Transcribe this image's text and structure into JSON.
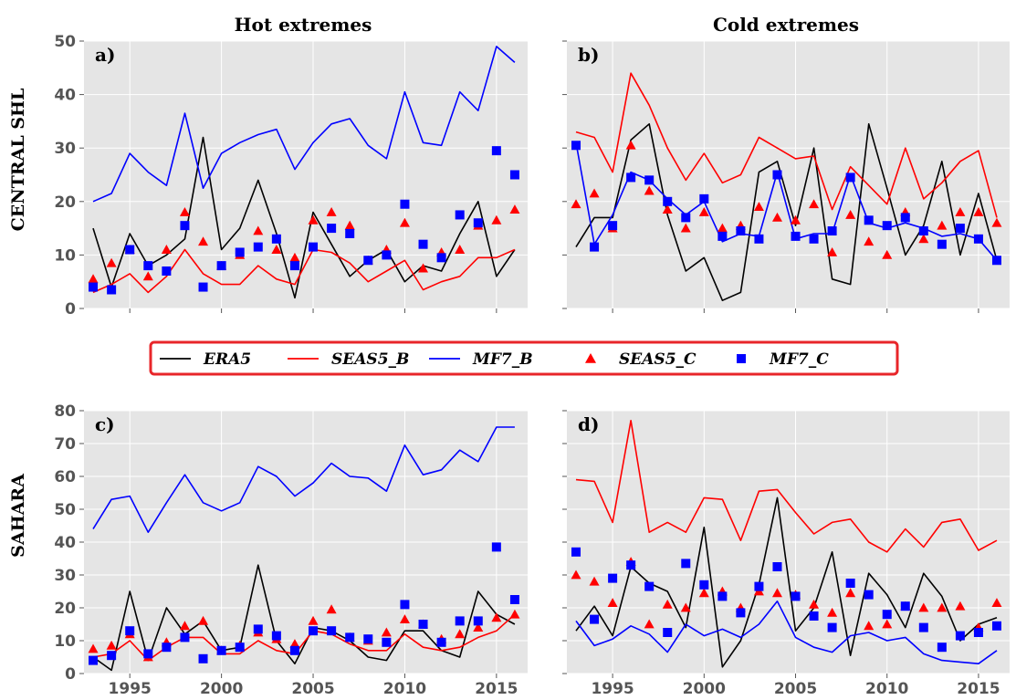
{
  "column_titles": [
    "Hot extremes",
    "Cold extremes"
  ],
  "row_labels": [
    "CENTRAL SHL",
    "SAHARA"
  ],
  "legend": {
    "entries": [
      {
        "label": "ERA5",
        "kind": "line",
        "color": "#000000"
      },
      {
        "label": "SEAS5_B",
        "kind": "line",
        "color": "#ff0000"
      },
      {
        "label": "MF7_B",
        "kind": "line",
        "color": "#0000ff"
      },
      {
        "label": "SEAS5_C",
        "kind": "triangle",
        "color": "#ff0000"
      },
      {
        "label": "MF7_C",
        "kind": "square",
        "color": "#0000ff"
      }
    ],
    "border_color": "#e8262a",
    "placement": "center"
  },
  "colors": {
    "panel_bg": "#e5e5e5",
    "grid": "#ffffff",
    "era5": "#000000",
    "seas5": "#ff0000",
    "mf7": "#0000ff"
  },
  "chart_data": [
    {
      "type": "line",
      "panel_label": "a)",
      "title": "Hot extremes",
      "ylabel": "CENTRAL SHL",
      "xlim": [
        1992.5,
        2016.7
      ],
      "ylim": [
        0,
        50
      ],
      "xticks": [
        1995,
        2000,
        2005,
        2010,
        2015
      ],
      "yticks": [
        0,
        10,
        20,
        30,
        40,
        50
      ],
      "show_xtick_labels": false,
      "show_ytick_labels": true,
      "grid": true,
      "x": [
        1993,
        1994,
        1995,
        1996,
        1997,
        1998,
        1999,
        2000,
        2001,
        2002,
        2003,
        2004,
        2005,
        2006,
        2007,
        2008,
        2009,
        2010,
        2011,
        2012,
        2013,
        2014,
        2015,
        2016
      ],
      "series": [
        {
          "name": "ERA5",
          "kind": "line",
          "values": [
            15,
            4,
            14,
            8,
            10,
            13,
            32,
            11,
            15,
            24,
            14,
            2,
            18,
            12,
            6,
            9,
            11,
            5,
            8,
            7,
            14,
            20,
            6,
            11
          ]
        },
        {
          "name": "SEAS5_B",
          "kind": "line",
          "values": [
            3,
            4.5,
            6.5,
            3,
            6,
            11,
            6.5,
            4.5,
            4.5,
            8,
            5.5,
            4.5,
            11,
            10.5,
            8.5,
            5,
            7,
            9,
            3.5,
            5,
            6,
            9.5,
            9.5,
            11
          ]
        },
        {
          "name": "MF7_B",
          "kind": "line",
          "values": [
            20,
            21.5,
            29,
            25.5,
            23,
            36.5,
            22.5,
            29,
            31,
            32.5,
            33.5,
            26,
            31,
            34.5,
            35.5,
            30.5,
            28,
            40.5,
            31,
            30.5,
            40.5,
            37,
            49,
            46
          ]
        },
        {
          "name": "SEAS5_C",
          "kind": "triangle",
          "values": [
            5.5,
            8.5,
            11,
            6,
            11,
            18,
            12.5,
            8,
            10,
            14.5,
            11,
            9.5,
            16.5,
            18,
            15.5,
            9,
            11,
            16,
            7.5,
            10.5,
            11,
            15.5,
            16.5,
            18.5
          ]
        },
        {
          "name": "MF7_C",
          "kind": "square",
          "values": [
            4,
            3.5,
            11,
            8,
            7,
            15.5,
            4,
            8,
            10.5,
            11.5,
            13,
            8,
            11.5,
            15,
            14,
            9,
            10,
            19.5,
            12,
            9.5,
            17.5,
            16,
            29.5,
            25
          ]
        }
      ]
    },
    {
      "type": "line",
      "panel_label": "b)",
      "title": "Cold extremes",
      "xlim": [
        1992.5,
        2016.7
      ],
      "ylim": [
        0,
        50
      ],
      "xticks": [
        1995,
        2000,
        2005,
        2010,
        2015
      ],
      "yticks": [
        0,
        10,
        20,
        30,
        40,
        50
      ],
      "show_xtick_labels": false,
      "show_ytick_labels": false,
      "grid": true,
      "x": [
        1993,
        1994,
        1995,
        1996,
        1997,
        1998,
        1999,
        2000,
        2001,
        2002,
        2003,
        2004,
        2005,
        2006,
        2007,
        2008,
        2009,
        2010,
        2011,
        2012,
        2013,
        2014,
        2015,
        2016
      ],
      "series": [
        {
          "name": "ERA5",
          "kind": "line",
          "values": [
            11.5,
            17,
            17,
            31.5,
            34.5,
            17.5,
            7,
            9.5,
            1.5,
            3,
            25.5,
            27.5,
            15.5,
            30,
            5.5,
            4.5,
            34.5,
            22.5,
            10,
            15.5,
            27.5,
            10,
            21.5,
            9
          ]
        },
        {
          "name": "SEAS5_B",
          "kind": "line",
          "values": [
            33,
            32,
            25.5,
            44,
            38,
            30,
            24,
            29,
            23.5,
            25,
            32,
            30,
            28,
            28.5,
            18.5,
            26.5,
            23,
            19.5,
            30,
            20.5,
            23.5,
            27.5,
            29.5,
            17
          ]
        },
        {
          "name": "MF7_B",
          "kind": "line",
          "values": [
            31,
            12,
            17.5,
            25.5,
            24,
            20.5,
            17.5,
            20,
            12.5,
            14,
            13.5,
            25.5,
            13,
            14,
            14,
            25,
            16,
            15,
            16,
            15,
            13.5,
            14,
            13,
            9
          ]
        },
        {
          "name": "SEAS5_C",
          "kind": "triangle",
          "values": [
            19.5,
            21.5,
            15,
            30.5,
            22,
            18.5,
            15,
            18,
            15,
            15.5,
            19,
            17,
            16.5,
            19.5,
            10.5,
            17.5,
            12.5,
            10,
            18,
            13,
            15.5,
            18,
            18,
            16
          ]
        },
        {
          "name": "MF7_C",
          "kind": "square",
          "values": [
            30.5,
            11.5,
            15.5,
            24.5,
            24,
            20,
            17,
            20.5,
            13.5,
            14.5,
            13,
            25,
            13.5,
            13,
            14.5,
            24.5,
            16.5,
            15.5,
            17,
            14.5,
            12,
            15,
            13,
            9
          ]
        }
      ]
    },
    {
      "type": "line",
      "panel_label": "c)",
      "ylabel": "SAHARA",
      "xlim": [
        1992.5,
        2016.7
      ],
      "ylim": [
        0,
        80
      ],
      "xticks": [
        1995,
        2000,
        2005,
        2010,
        2015
      ],
      "xtick_labels": [
        "1995",
        "2000",
        "2005",
        "2010",
        "2015"
      ],
      "yticks": [
        0,
        10,
        20,
        30,
        40,
        50,
        60,
        70,
        80
      ],
      "show_xtick_labels": true,
      "show_ytick_labels": true,
      "grid": true,
      "x": [
        1993,
        1994,
        1995,
        1996,
        1997,
        1998,
        1999,
        2000,
        2001,
        2002,
        2003,
        2004,
        2005,
        2006,
        2007,
        2008,
        2009,
        2010,
        2011,
        2012,
        2013,
        2014,
        2015,
        2016
      ],
      "series": [
        {
          "name": "ERA5",
          "kind": "line",
          "values": [
            5,
            1,
            25,
            4,
            20,
            12,
            16,
            7,
            8,
            33,
            10,
            3,
            14,
            13,
            10,
            5,
            4,
            13,
            13,
            7,
            5,
            25,
            18,
            15
          ]
        },
        {
          "name": "SEAS5_B",
          "kind": "line",
          "values": [
            5,
            6,
            10,
            4,
            8,
            11,
            11,
            6,
            6,
            10,
            7,
            6,
            13,
            12,
            9,
            7,
            7,
            12,
            8,
            7,
            8,
            11,
            13,
            18
          ]
        },
        {
          "name": "MF7_B",
          "kind": "line",
          "values": [
            44,
            53,
            54,
            43,
            52,
            60.5,
            52,
            49.5,
            52,
            63,
            60,
            54,
            58,
            64,
            60,
            59.5,
            55.5,
            69.5,
            60.5,
            62,
            68,
            64.5,
            75,
            75
          ]
        },
        {
          "name": "SEAS5_C",
          "kind": "triangle",
          "values": [
            7.5,
            8.5,
            12,
            5,
            9.5,
            14.5,
            16,
            7,
            8.5,
            12.5,
            10.5,
            9,
            16,
            19.5,
            11,
            10,
            12.5,
            16.5,
            15,
            10.5,
            12,
            14,
            17,
            18
          ]
        },
        {
          "name": "MF7_C",
          "kind": "square",
          "values": [
            4,
            5.5,
            13,
            6,
            8,
            11,
            4.5,
            7,
            8,
            13.5,
            11.5,
            7,
            13,
            13,
            11,
            10.5,
            9.5,
            21,
            15,
            9.5,
            16,
            16,
            38.5,
            22.5
          ]
        }
      ]
    },
    {
      "type": "line",
      "panel_label": "d)",
      "xlim": [
        1992.5,
        2016.7
      ],
      "ylim": [
        0,
        80
      ],
      "xticks": [
        1995,
        2000,
        2005,
        2010,
        2015
      ],
      "xtick_labels": [
        "1995",
        "2000",
        "2005",
        "2010",
        "2015"
      ],
      "yticks": [
        0,
        10,
        20,
        30,
        40,
        50,
        60,
        70,
        80
      ],
      "show_xtick_labels": true,
      "show_ytick_labels": false,
      "grid": true,
      "x": [
        1993,
        1994,
        1995,
        1996,
        1997,
        1998,
        1999,
        2000,
        2001,
        2002,
        2003,
        2004,
        2005,
        2006,
        2007,
        2008,
        2009,
        2010,
        2011,
        2012,
        2013,
        2014,
        2015,
        2016
      ],
      "series": [
        {
          "name": "ERA5",
          "kind": "line",
          "values": [
            13,
            20.5,
            11.5,
            32.5,
            27.5,
            25,
            14,
            44.5,
            2,
            10,
            27,
            53.5,
            13,
            20,
            37,
            5.5,
            30.5,
            24,
            14,
            30.5,
            23.5,
            10,
            15,
            17
          ]
        },
        {
          "name": "SEAS5_B",
          "kind": "line",
          "values": [
            59,
            58.5,
            46,
            77,
            43,
            46,
            43,
            53.5,
            53,
            40.5,
            55.5,
            56,
            49,
            42.5,
            46,
            47,
            40,
            37,
            44,
            38.5,
            46,
            47,
            37.5,
            40.5
          ]
        },
        {
          "name": "MF7_B",
          "kind": "line",
          "values": [
            16,
            8.5,
            10.5,
            14.5,
            12,
            6.5,
            15,
            11.5,
            13.5,
            11,
            15,
            22,
            11,
            8,
            6.5,
            11.5,
            12.5,
            10,
            11,
            6,
            4,
            3.5,
            3,
            7
          ]
        },
        {
          "name": "SEAS5_C",
          "kind": "triangle",
          "values": [
            30,
            28,
            21.5,
            34,
            15,
            21,
            20,
            24.5,
            25,
            20,
            25,
            24.5,
            24,
            21,
            18.5,
            24.5,
            14.5,
            15,
            20.5,
            20,
            20,
            20.5,
            14,
            21.5
          ]
        },
        {
          "name": "MF7_C",
          "kind": "square",
          "values": [
            37,
            16.5,
            29,
            33,
            26.5,
            12.5,
            33.5,
            27,
            23.5,
            18.5,
            26.5,
            32.5,
            23.5,
            17.5,
            14,
            27.5,
            24,
            18,
            20.5,
            14,
            8,
            11.5,
            12.5,
            14.5
          ]
        }
      ]
    }
  ]
}
